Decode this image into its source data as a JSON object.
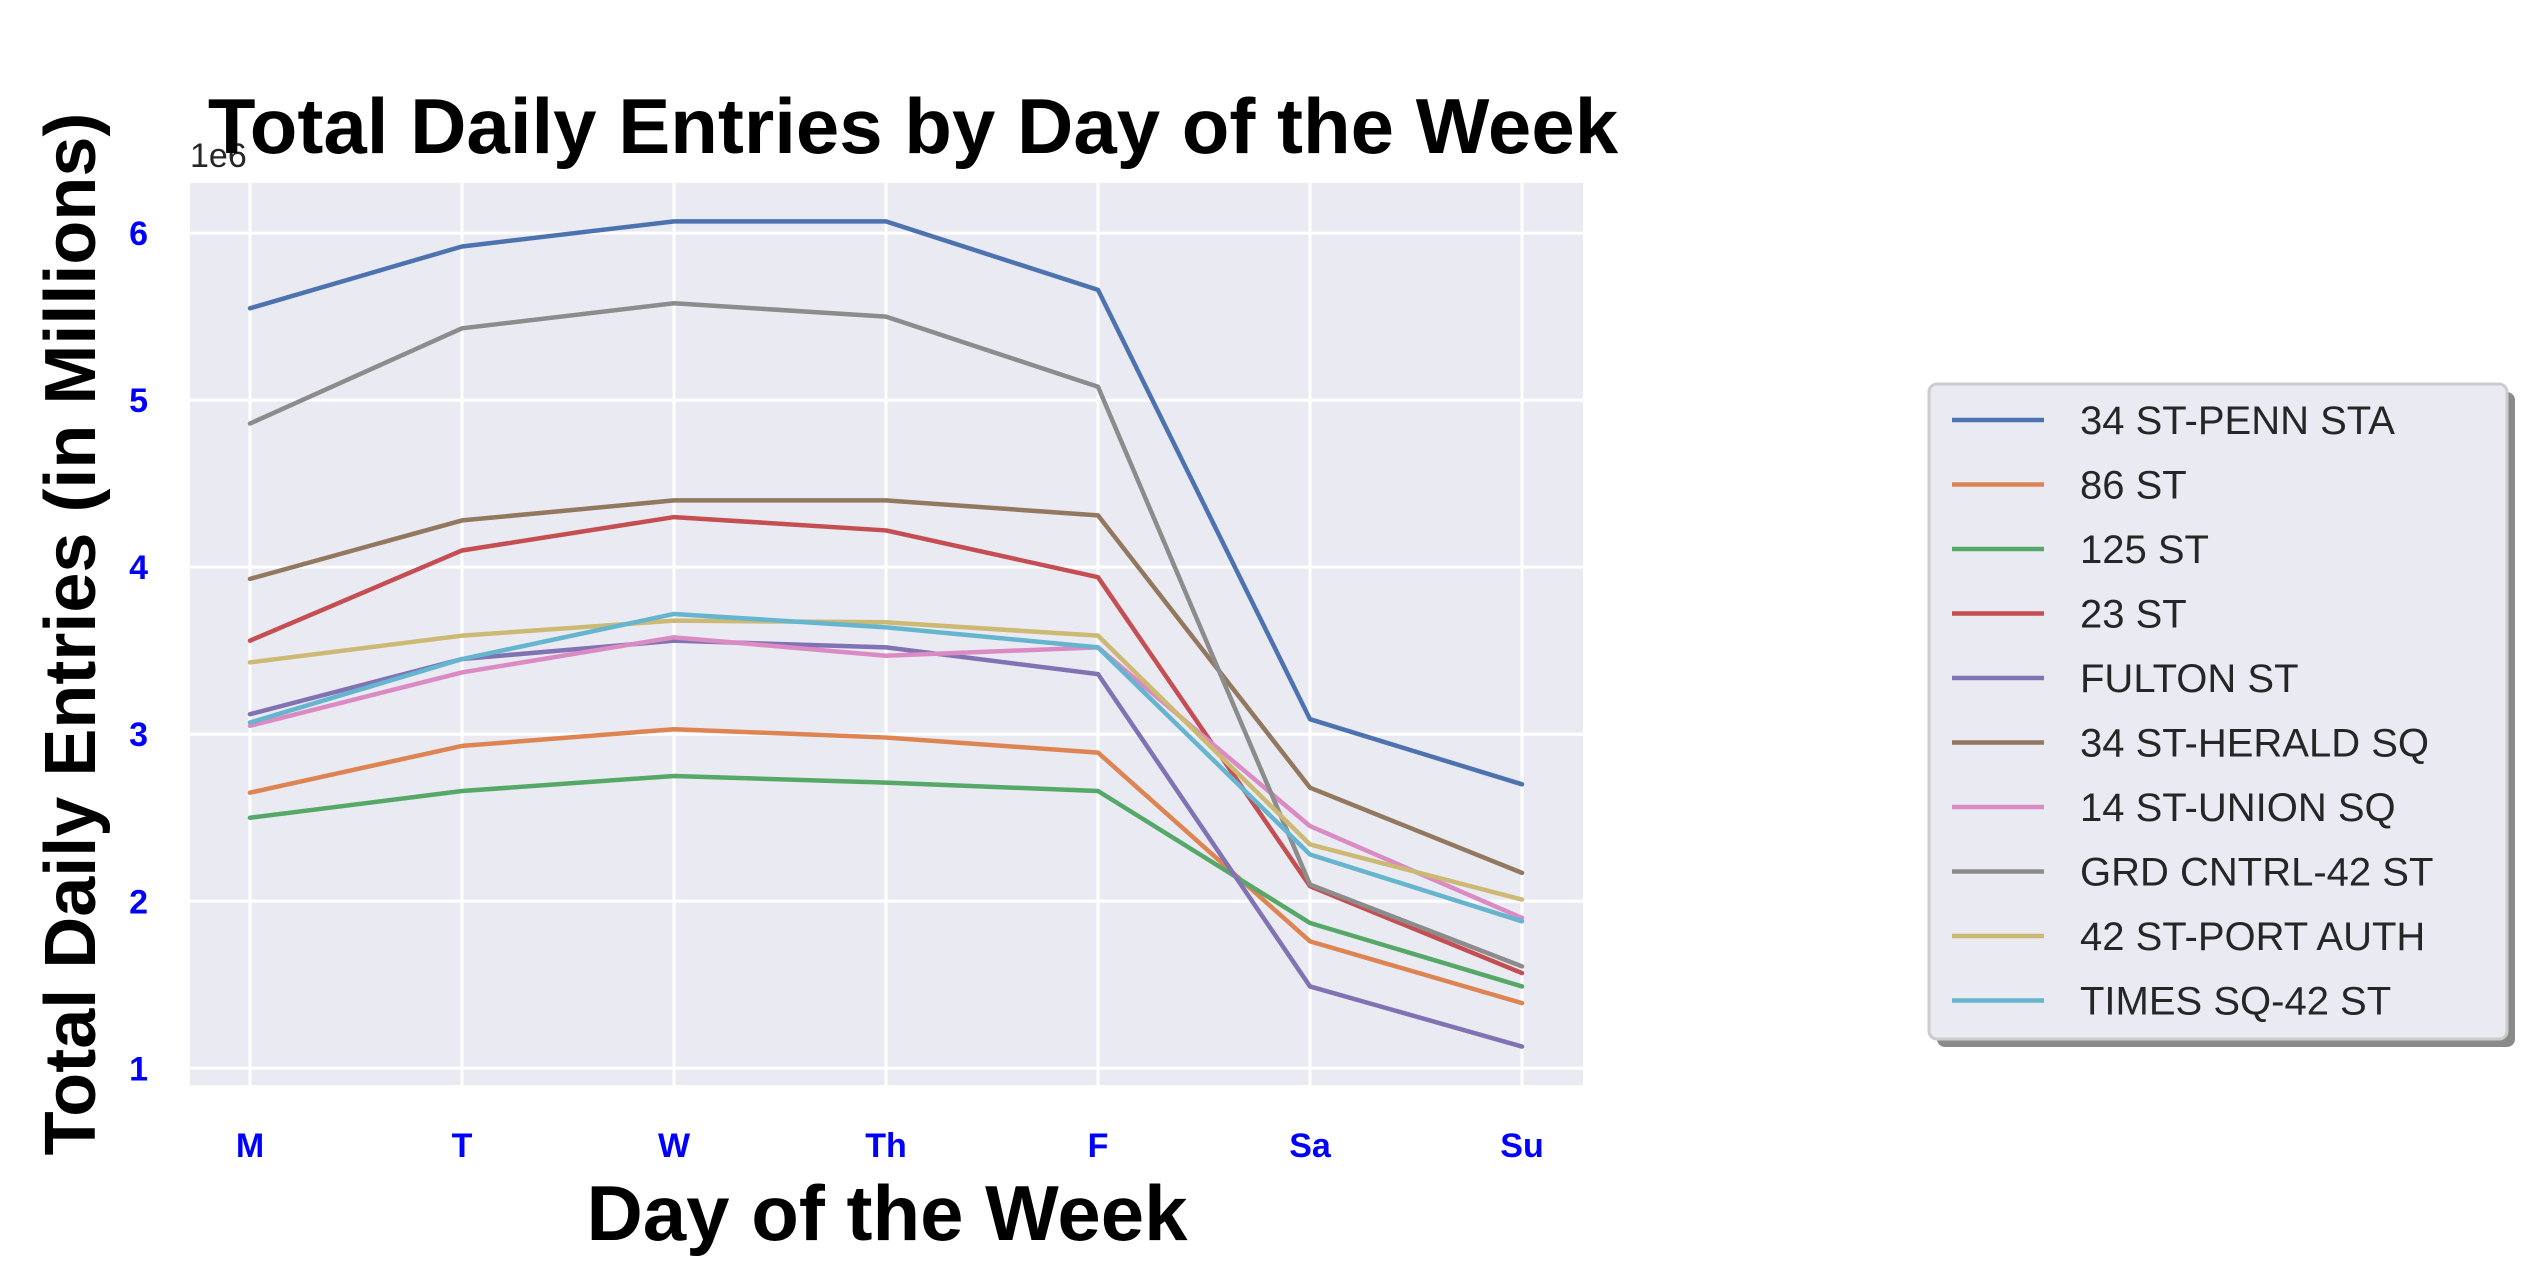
{
  "chart_data": {
    "type": "line",
    "title": "Total Daily Entries by Day of the Week",
    "xlabel": "Day of the Week",
    "ylabel": "Total Daily Entries (in Millions)",
    "y_offset_label": "1e6",
    "categories": [
      "M",
      "T",
      "W",
      "Th",
      "F",
      "Sa",
      "Su"
    ],
    "ylim": [
      0.9,
      6.3
    ],
    "yticks": [
      1,
      2,
      3,
      4,
      5,
      6
    ],
    "grid": true,
    "legend_position": "right",
    "series": [
      {
        "name": "34 ST-PENN STA",
        "color": "#4c72b0",
        "values": [
          5.55,
          5.92,
          6.07,
          6.07,
          5.66,
          3.09,
          2.7
        ]
      },
      {
        "name": "86 ST",
        "color": "#dd8452",
        "values": [
          2.65,
          2.93,
          3.03,
          2.98,
          2.89,
          1.76,
          1.39
        ]
      },
      {
        "name": "125 ST",
        "color": "#55a868",
        "values": [
          2.5,
          2.66,
          2.75,
          2.71,
          2.66,
          1.87,
          1.49
        ]
      },
      {
        "name": "23 ST",
        "color": "#c44e52",
        "values": [
          3.56,
          4.1,
          4.3,
          4.22,
          3.94,
          2.09,
          1.57
        ]
      },
      {
        "name": "FULTON ST",
        "color": "#8172b3",
        "values": [
          3.12,
          3.45,
          3.56,
          3.52,
          3.36,
          1.49,
          1.13
        ]
      },
      {
        "name": "34 ST-HERALD SQ",
        "color": "#937860",
        "values": [
          3.93,
          4.28,
          4.4,
          4.4,
          4.31,
          2.68,
          2.17
        ]
      },
      {
        "name": "14 ST-UNION SQ",
        "color": "#da8bc3",
        "values": [
          3.05,
          3.37,
          3.58,
          3.47,
          3.52,
          2.45,
          1.9
        ]
      },
      {
        "name": "GRD CNTRL-42 ST",
        "color": "#8c8c8c",
        "values": [
          4.86,
          5.43,
          5.58,
          5.5,
          5.08,
          2.1,
          1.61
        ]
      },
      {
        "name": "42 ST-PORT AUTH",
        "color": "#ccb974",
        "values": [
          3.43,
          3.59,
          3.68,
          3.67,
          3.59,
          2.34,
          2.01
        ]
      },
      {
        "name": "TIMES SQ-42 ST",
        "color": "#64b5cd",
        "values": [
          3.07,
          3.45,
          3.72,
          3.64,
          3.52,
          2.28,
          1.88
        ]
      }
    ]
  }
}
